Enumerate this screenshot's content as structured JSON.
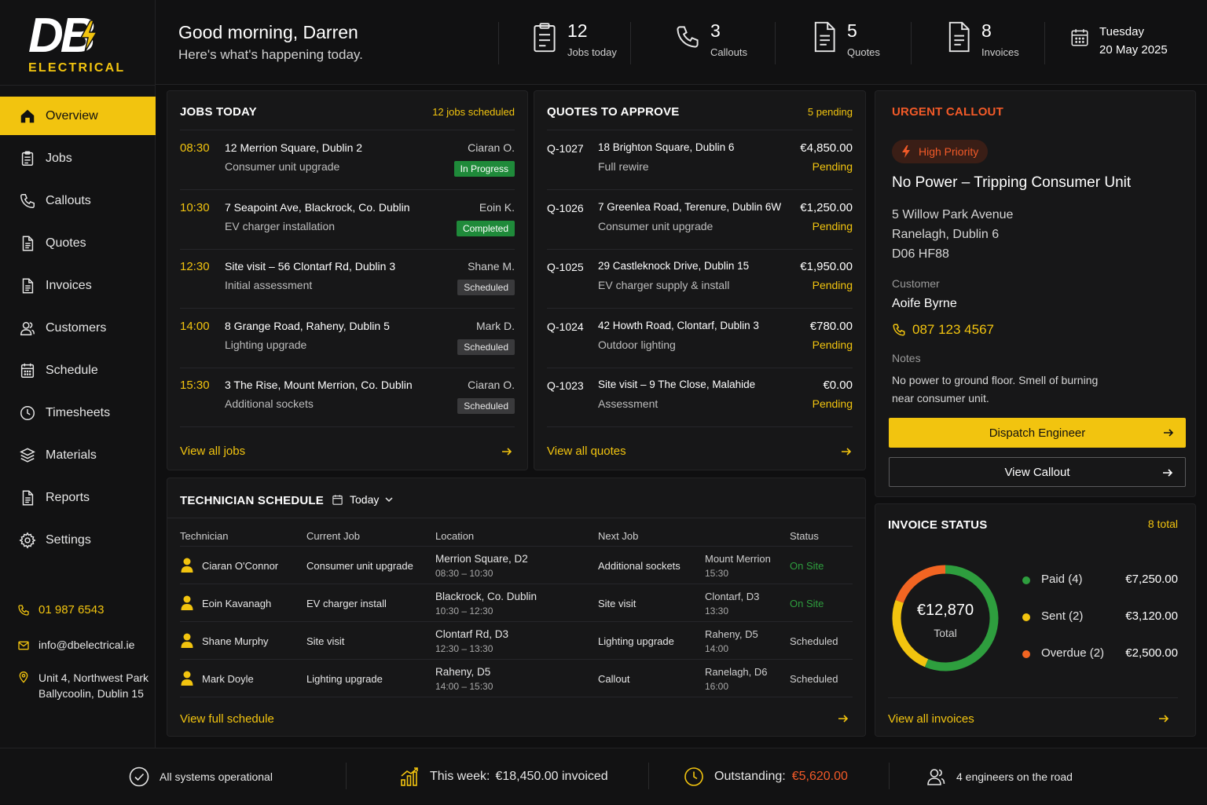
{
  "brand": {
    "logo_letters": "DB",
    "logo_text": "ELECTRICAL"
  },
  "sidebar": {
    "items": [
      {
        "label": "Overview",
        "icon": "home-icon",
        "active": true
      },
      {
        "label": "Jobs",
        "icon": "clipboard-icon"
      },
      {
        "label": "Callouts",
        "icon": "phone-icon"
      },
      {
        "label": "Quotes",
        "icon": "document-icon"
      },
      {
        "label": "Invoices",
        "icon": "document-icon"
      },
      {
        "label": "Customers",
        "icon": "users-icon"
      },
      {
        "label": "Schedule",
        "icon": "calendar-icon"
      },
      {
        "label": "Timesheets",
        "icon": "clock-icon"
      },
      {
        "label": "Materials",
        "icon": "box-icon"
      },
      {
        "label": "Reports",
        "icon": "report-icon"
      },
      {
        "label": "Settings",
        "icon": "gear-icon"
      }
    ],
    "contact": {
      "phone": "01 987 6543",
      "email": "info@dbelectrical.ie",
      "address_line1": "Unit 4, Northwest Park",
      "address_line2": "Ballycoolin, Dublin 15"
    }
  },
  "header": {
    "greeting": "Good morning, Darren",
    "subtitle": "Here's what's happening today.",
    "stats": [
      {
        "value": "12",
        "label": "Jobs today",
        "icon": "clipboard-icon"
      },
      {
        "value": "3",
        "label": "Callouts",
        "icon": "phone-icon"
      },
      {
        "value": "5",
        "label": "Quotes",
        "icon": "document-icon"
      },
      {
        "value": "8",
        "label": "Invoices",
        "icon": "document-icon"
      }
    ],
    "date_day": "Tuesday",
    "date_full": "20 May 2025"
  },
  "jobs": {
    "title": "JOBS TODAY",
    "count_label": "12 jobs scheduled",
    "rows": [
      {
        "time": "08:30",
        "address": "12 Merrion Square, Dublin 2",
        "desc": "Consumer unit upgrade",
        "tech": "Ciaran O.",
        "status": "In Progress",
        "status_kind": "green"
      },
      {
        "time": "10:30",
        "address": "7 Seapoint Ave, Blackrock, Co. Dublin",
        "desc": "EV charger installation",
        "tech": "Eoin K.",
        "status": "Completed",
        "status_kind": "green"
      },
      {
        "time": "12:30",
        "address": "Site visit – 56 Clontarf Rd, Dublin 3",
        "desc": "Initial assessment",
        "tech": "Shane M.",
        "status": "Scheduled",
        "status_kind": "grey"
      },
      {
        "time": "14:00",
        "address": "8 Grange Road, Raheny, Dublin 5",
        "desc": "Lighting upgrade",
        "tech": "Mark D.",
        "status": "Scheduled",
        "status_kind": "grey"
      },
      {
        "time": "15:30",
        "address": "3 The Rise, Mount Merrion, Co. Dublin",
        "desc": "Additional sockets",
        "tech": "Ciaran O.",
        "status": "Scheduled",
        "status_kind": "grey"
      }
    ],
    "view_all": "View all jobs"
  },
  "quotes": {
    "title": "QUOTES TO APPROVE",
    "count_label": "5 pending",
    "rows": [
      {
        "id": "Q-1027",
        "address": "18 Brighton Square, Dublin 6",
        "desc": "Full rewire",
        "amount": "€4,850.00",
        "status": "Pending"
      },
      {
        "id": "Q-1026",
        "address": "7 Greenlea Road, Terenure, Dublin 6W",
        "desc": "Consumer unit upgrade",
        "amount": "€1,250.00",
        "status": "Pending"
      },
      {
        "id": "Q-1025",
        "address": "29 Castleknock Drive, Dublin 15",
        "desc": "EV charger supply & install",
        "amount": "€1,950.00",
        "status": "Pending"
      },
      {
        "id": "Q-1024",
        "address": "42 Howth Road, Clontarf, Dublin 3",
        "desc": "Outdoor lighting",
        "amount": "€780.00",
        "status": "Pending"
      },
      {
        "id": "Q-1023",
        "address": "Site visit – 9 The Close, Malahide",
        "desc": "Assessment",
        "amount": "€0.00",
        "status": "Pending"
      }
    ],
    "view_all": "View all quotes"
  },
  "urgent": {
    "title": "URGENT CALLOUT",
    "priority": "High Priority",
    "heading": "No Power – Tripping Consumer Unit",
    "address1": "5 Willow Park Avenue",
    "address2": "Ranelagh, Dublin 6",
    "address3": "D06 HF88",
    "customer_label": "Customer",
    "customer": "Aoife Byrne",
    "phone": "087 123 4567",
    "notes_label": "Notes",
    "notes1": "No power to ground floor. Smell of burning",
    "notes2": "near consumer unit.",
    "dispatch": "Dispatch Engineer",
    "view": "View Callout",
    "accent": "#f25a28"
  },
  "schedule": {
    "title": "TECHNICIAN SCHEDULE",
    "filter": "Today",
    "columns": [
      "Technician",
      "Current Job",
      "Location",
      "Next Job",
      "Status"
    ],
    "rows": [
      {
        "tech": "Ciaran O'Connor",
        "current": "Consumer unit upgrade",
        "loc": "Merrion Square, D2",
        "loc_time": "08:30 – 10:30",
        "next": "Additional sockets",
        "next_loc": "Mount Merrion",
        "next_time": "15:30",
        "status": "On Site",
        "status_kind": "green"
      },
      {
        "tech": "Eoin Kavanagh",
        "current": "EV charger install",
        "loc": "Blackrock, Co. Dublin",
        "loc_time": "10:30 – 12:30",
        "next": "Site visit",
        "next_loc": "Clontarf, D3",
        "next_time": "13:30",
        "status": "On Site",
        "status_kind": "green"
      },
      {
        "tech": "Shane Murphy",
        "current": "Site visit",
        "loc": "Clontarf Rd, D3",
        "loc_time": "12:30 – 13:30",
        "next": "Lighting upgrade",
        "next_loc": "Raheny, D5",
        "next_time": "14:00",
        "status": "Scheduled",
        "status_kind": "grey"
      },
      {
        "tech": "Mark Doyle",
        "current": "Lighting upgrade",
        "loc": "Raheny, D5",
        "loc_time": "14:00 – 15:30",
        "next": "Callout",
        "next_loc": "Ranelagh, D6",
        "next_time": "16:00",
        "status": "Scheduled",
        "status_kind": "grey"
      }
    ],
    "view_all": "View full schedule"
  },
  "invoices": {
    "title": "INVOICE STATUS",
    "count_label": "8 total",
    "total": "€12,870",
    "total_label": "Total",
    "legend": [
      {
        "label": "Paid (4)",
        "amount": "€7,250.00",
        "color": "#2e9e3e"
      },
      {
        "label": "Sent (2)",
        "amount": "€3,120.00",
        "color": "#f2c40f"
      },
      {
        "label": "Overdue (2)",
        "amount": "€2,500.00",
        "color": "#f26522"
      }
    ],
    "view_all": "View all invoices"
  },
  "chart_data": {
    "type": "pie",
    "categories": [
      "Paid (4)",
      "Sent (2)",
      "Overdue (2)"
    ],
    "values": [
      7250,
      3120,
      2500
    ]
  },
  "footer": {
    "systems": "All systems operational",
    "week_label": "This week:",
    "week_value": "€18,450.00 invoiced",
    "outstanding_label": "Outstanding:",
    "outstanding_value": "€5,620.00",
    "engineers": "4 engineers on the road"
  },
  "colors": {
    "accent": "#f2c40f",
    "danger": "#f25a28",
    "success": "#2e9e3e"
  }
}
